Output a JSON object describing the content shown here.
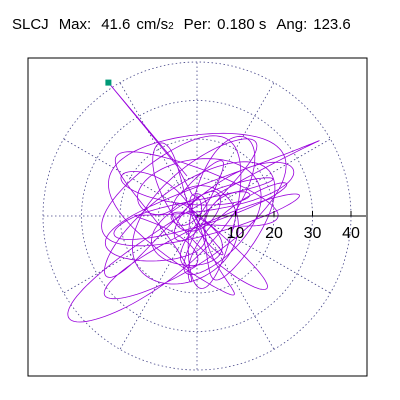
{
  "header": {
    "station": "SLCJ",
    "max_label": "Max:",
    "max_value": "41.6",
    "max_unit": "cm/s",
    "max_unit_exp": "2",
    "per_label": "Per:",
    "per_value": "0.180 s",
    "ang_label": "Ang:",
    "ang_value": "123.6"
  },
  "chart_data": {
    "type": "polar-orbit",
    "title": "",
    "radial_ticks": [
      "10",
      "20",
      "30",
      "40"
    ],
    "radial_range": [
      0,
      44
    ],
    "grid": true,
    "spokes_deg": [
      0,
      30,
      60,
      90,
      120,
      150,
      180,
      210,
      240,
      270,
      300,
      330
    ],
    "max_magnitude": 41.6,
    "max_angle_deg": 123.6,
    "max_point_color": "#009977",
    "trace_color": "#9900dd",
    "grid_color": "#444488"
  }
}
